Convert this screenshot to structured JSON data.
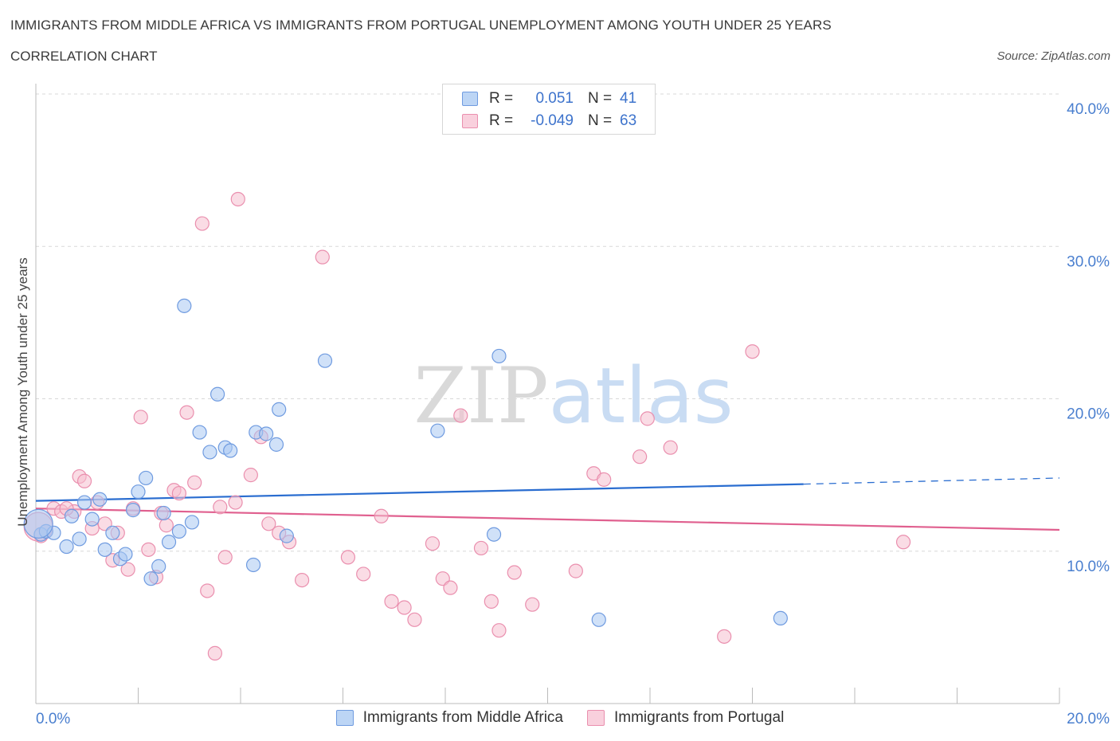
{
  "header": {
    "title": "IMMIGRANTS FROM MIDDLE AFRICA VS IMMIGRANTS FROM PORTUGAL UNEMPLOYMENT AMONG YOUTH UNDER 25 YEARS",
    "subtitle": "CORRELATION CHART",
    "source": "Source: ZipAtlas.com"
  },
  "legend": {
    "series1": {
      "r_label": "R =",
      "r_value": "0.051",
      "n_label": "N =",
      "n_value": "41"
    },
    "series2": {
      "r_label": "R =",
      "r_value": "-0.049",
      "n_label": "N =",
      "n_value": "63"
    }
  },
  "colors": {
    "blue_fill": "#a9c8f2",
    "blue_stroke": "#6f9be0",
    "blue_line": "#2a6dd0",
    "pink_fill": "#f6bfd0",
    "pink_stroke": "#ea8fae",
    "pink_line": "#e0608f",
    "tick_text": "#4a7fcf",
    "grid": "#d8d8d8"
  },
  "chart_data": {
    "type": "scatter",
    "title": "IMMIGRANTS FROM MIDDLE AFRICA VS IMMIGRANTS FROM PORTUGAL UNEMPLOYMENT AMONG YOUTH UNDER 25 YEARS",
    "subtitle": "CORRELATION CHART",
    "xlabel": "",
    "ylabel": "Unemployment Among Youth under 25 years",
    "xlim": [
      0,
      20
    ],
    "ylim": [
      0,
      40
    ],
    "x_ticks": [
      {
        "value": 0,
        "label": "0.0%"
      },
      {
        "value": 20,
        "label": "20.0%"
      }
    ],
    "y_ticks": [
      {
        "value": 10,
        "label": "10.0%"
      },
      {
        "value": 20,
        "label": "20.0%"
      },
      {
        "value": 30,
        "label": "30.0%"
      },
      {
        "value": 40,
        "label": "40.0%"
      }
    ],
    "watermark": "ZIPatlas",
    "series": [
      {
        "name": "Immigrants from Middle Africa",
        "color": "blue",
        "R": 0.051,
        "N": 41,
        "trend": {
          "x0": 0,
          "y0": 13.3,
          "x1": 15.0,
          "y1": 14.4,
          "dash_to_x": 20,
          "dash_to_y": 14.8
        },
        "points": [
          [
            0.1,
            11.1
          ],
          [
            0.2,
            11.3
          ],
          [
            0.35,
            11.2
          ],
          [
            0.6,
            10.3
          ],
          [
            0.7,
            12.3
          ],
          [
            0.85,
            10.8
          ],
          [
            0.95,
            13.2
          ],
          [
            1.1,
            12.1
          ],
          [
            1.25,
            13.4
          ],
          [
            1.35,
            10.1
          ],
          [
            1.5,
            11.2
          ],
          [
            1.65,
            9.5
          ],
          [
            1.75,
            9.8
          ],
          [
            1.9,
            12.7
          ],
          [
            2.0,
            13.9
          ],
          [
            2.15,
            14.8
          ],
          [
            2.25,
            8.2
          ],
          [
            2.4,
            9.0
          ],
          [
            2.5,
            12.5
          ],
          [
            2.6,
            10.6
          ],
          [
            2.8,
            11.3
          ],
          [
            2.9,
            26.1
          ],
          [
            3.05,
            11.9
          ],
          [
            3.2,
            17.8
          ],
          [
            3.4,
            16.5
          ],
          [
            3.55,
            20.3
          ],
          [
            3.7,
            16.8
          ],
          [
            3.8,
            16.6
          ],
          [
            4.25,
            9.1
          ],
          [
            4.3,
            17.8
          ],
          [
            4.5,
            17.7
          ],
          [
            4.7,
            17.0
          ],
          [
            4.75,
            19.3
          ],
          [
            4.9,
            11.0
          ],
          [
            5.65,
            22.5
          ],
          [
            7.85,
            17.9
          ],
          [
            8.95,
            11.1
          ],
          [
            9.05,
            22.8
          ],
          [
            11.0,
            5.5
          ],
          [
            14.55,
            5.6
          ],
          [
            0.05,
            11.8
          ]
        ]
      },
      {
        "name": "Immigrants from Portugal",
        "color": "pink",
        "R": -0.049,
        "N": 63,
        "trend": {
          "x0": 0,
          "y0": 12.8,
          "x1": 20,
          "y1": 11.4
        },
        "points": [
          [
            0.1,
            11.0
          ],
          [
            0.2,
            11.3
          ],
          [
            0.35,
            12.8
          ],
          [
            0.5,
            12.6
          ],
          [
            0.75,
            12.6
          ],
          [
            0.85,
            14.9
          ],
          [
            0.95,
            14.6
          ],
          [
            1.1,
            11.5
          ],
          [
            1.2,
            13.2
          ],
          [
            1.35,
            11.8
          ],
          [
            1.5,
            9.4
          ],
          [
            1.6,
            11.2
          ],
          [
            1.8,
            8.8
          ],
          [
            1.9,
            12.8
          ],
          [
            2.05,
            18.8
          ],
          [
            2.2,
            10.1
          ],
          [
            2.35,
            8.3
          ],
          [
            2.45,
            12.5
          ],
          [
            2.55,
            11.7
          ],
          [
            2.7,
            14.0
          ],
          [
            2.8,
            13.8
          ],
          [
            2.95,
            19.1
          ],
          [
            3.1,
            14.5
          ],
          [
            3.25,
            31.5
          ],
          [
            3.35,
            7.4
          ],
          [
            3.5,
            3.3
          ],
          [
            3.6,
            12.9
          ],
          [
            3.7,
            9.6
          ],
          [
            3.9,
            13.2
          ],
          [
            3.95,
            33.1
          ],
          [
            4.2,
            15.0
          ],
          [
            4.4,
            17.5
          ],
          [
            4.55,
            11.8
          ],
          [
            4.75,
            11.2
          ],
          [
            4.95,
            10.6
          ],
          [
            5.2,
            8.1
          ],
          [
            5.6,
            29.3
          ],
          [
            6.1,
            9.6
          ],
          [
            6.4,
            8.5
          ],
          [
            6.75,
            12.3
          ],
          [
            6.95,
            6.7
          ],
          [
            7.2,
            6.3
          ],
          [
            7.4,
            5.5
          ],
          [
            7.75,
            10.5
          ],
          [
            7.95,
            8.2
          ],
          [
            8.1,
            7.6
          ],
          [
            8.3,
            18.9
          ],
          [
            8.7,
            10.2
          ],
          [
            8.9,
            6.7
          ],
          [
            9.05,
            4.8
          ],
          [
            9.35,
            8.6
          ],
          [
            9.7,
            6.5
          ],
          [
            10.55,
            8.7
          ],
          [
            10.9,
            15.1
          ],
          [
            11.1,
            14.7
          ],
          [
            11.8,
            16.2
          ],
          [
            11.95,
            18.7
          ],
          [
            12.4,
            16.8
          ],
          [
            13.45,
            4.4
          ],
          [
            14.0,
            23.1
          ],
          [
            16.95,
            10.6
          ],
          [
            0.6,
            12.8
          ],
          [
            0.05,
            11.6
          ]
        ]
      }
    ]
  },
  "bottom_legend": {
    "series1_label": "Immigrants from Middle Africa",
    "series2_label": "Immigrants from Portugal"
  }
}
